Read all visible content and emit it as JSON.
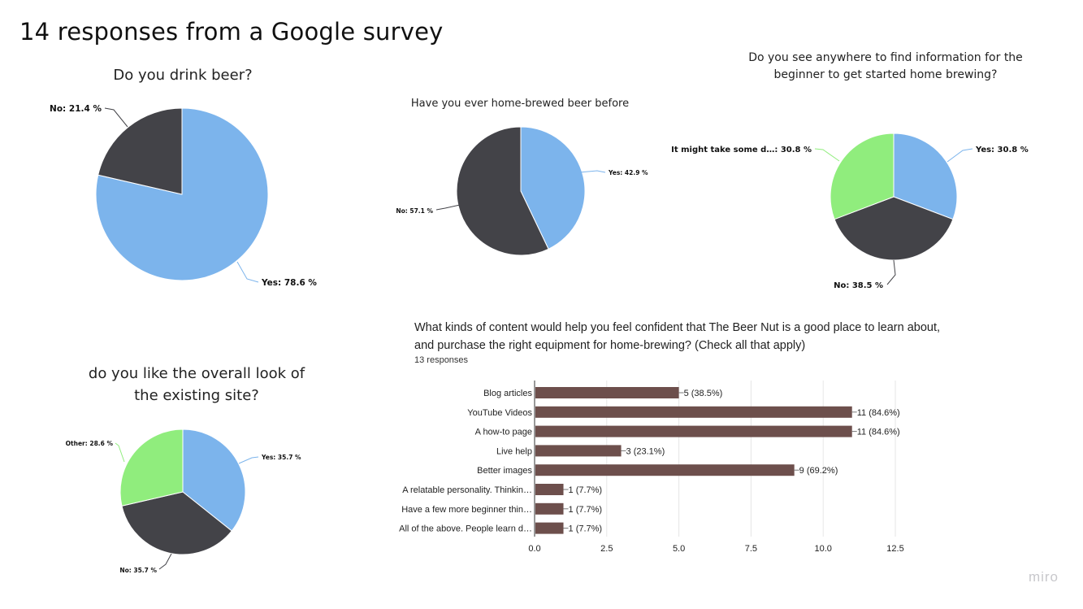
{
  "page": {
    "title": "14 responses from a Google survey",
    "watermark": "miro"
  },
  "colors": {
    "blue": "#7cb4ec",
    "dark": "#434348",
    "green": "#90ed7d",
    "bar": "#6d4f4c"
  },
  "chart_data": [
    {
      "type": "pie",
      "title": "Do you drink beer?",
      "slices": [
        {
          "label": "Yes",
          "value": 78.6,
          "text": "Yes: 78.6 %",
          "color": "#7cb4ec"
        },
        {
          "label": "No",
          "value": 21.4,
          "text": "No: 21.4 %",
          "color": "#434348"
        }
      ]
    },
    {
      "type": "pie",
      "title": "Have you ever home-brewed beer before",
      "slices": [
        {
          "label": "Yes",
          "value": 42.9,
          "text": "Yes: 42.9 %",
          "color": "#7cb4ec"
        },
        {
          "label": "No",
          "value": 57.1,
          "text": "No: 57.1 %",
          "color": "#434348"
        }
      ]
    },
    {
      "type": "pie",
      "title": "Do you see anywhere to find information for the beginner to get started home brewing?",
      "slices": [
        {
          "label": "Yes",
          "value": 30.8,
          "text": "Yes: 30.8 %",
          "color": "#7cb4ec"
        },
        {
          "label": "No",
          "value": 38.5,
          "text": "No: 38.5 %",
          "color": "#434348"
        },
        {
          "label": "It might take some d…",
          "value": 30.8,
          "text": "It might take some d…: 30.8 %",
          "color": "#90ed7d"
        }
      ]
    },
    {
      "type": "pie",
      "title": "do you like the overall look of the existing site?",
      "slices": [
        {
          "label": "Yes",
          "value": 35.7,
          "text": "Yes: 35.7 %",
          "color": "#7cb4ec"
        },
        {
          "label": "No",
          "value": 35.7,
          "text": "No: 35.7 %",
          "color": "#434348"
        },
        {
          "label": "Other",
          "value": 28.6,
          "text": "Other: 28.6 %",
          "color": "#90ed7d"
        }
      ]
    },
    {
      "type": "bar",
      "orientation": "horizontal",
      "title": "What kinds of content would help you feel confident that The Beer Nut is a good place to learn about, and purchase the right equipment for home-brewing? (Check all that apply)",
      "subtitle": "13 responses",
      "categories": [
        "Blog articles",
        "YouTube Videos",
        "A how-to page",
        "Live help",
        "Better images",
        "A relatable personality. Thinkin…",
        "Have a few more beginner thin…",
        "All of the above. People learn d…"
      ],
      "values": [
        5,
        11,
        11,
        3,
        9,
        1,
        1,
        1
      ],
      "value_labels": [
        "5 (38.5%)",
        "11 (84.6%)",
        "11 (84.6%)",
        "3 (23.1%)",
        "9 (69.2%)",
        "1 (7.7%)",
        "1 (7.7%)",
        "1 (7.7%)"
      ],
      "xlim": [
        0,
        12.5
      ],
      "xticks": [
        "0.0",
        "2.5",
        "5.0",
        "7.5",
        "10.0",
        "12.5"
      ],
      "grid": true,
      "color": "#6d4f4c"
    }
  ]
}
